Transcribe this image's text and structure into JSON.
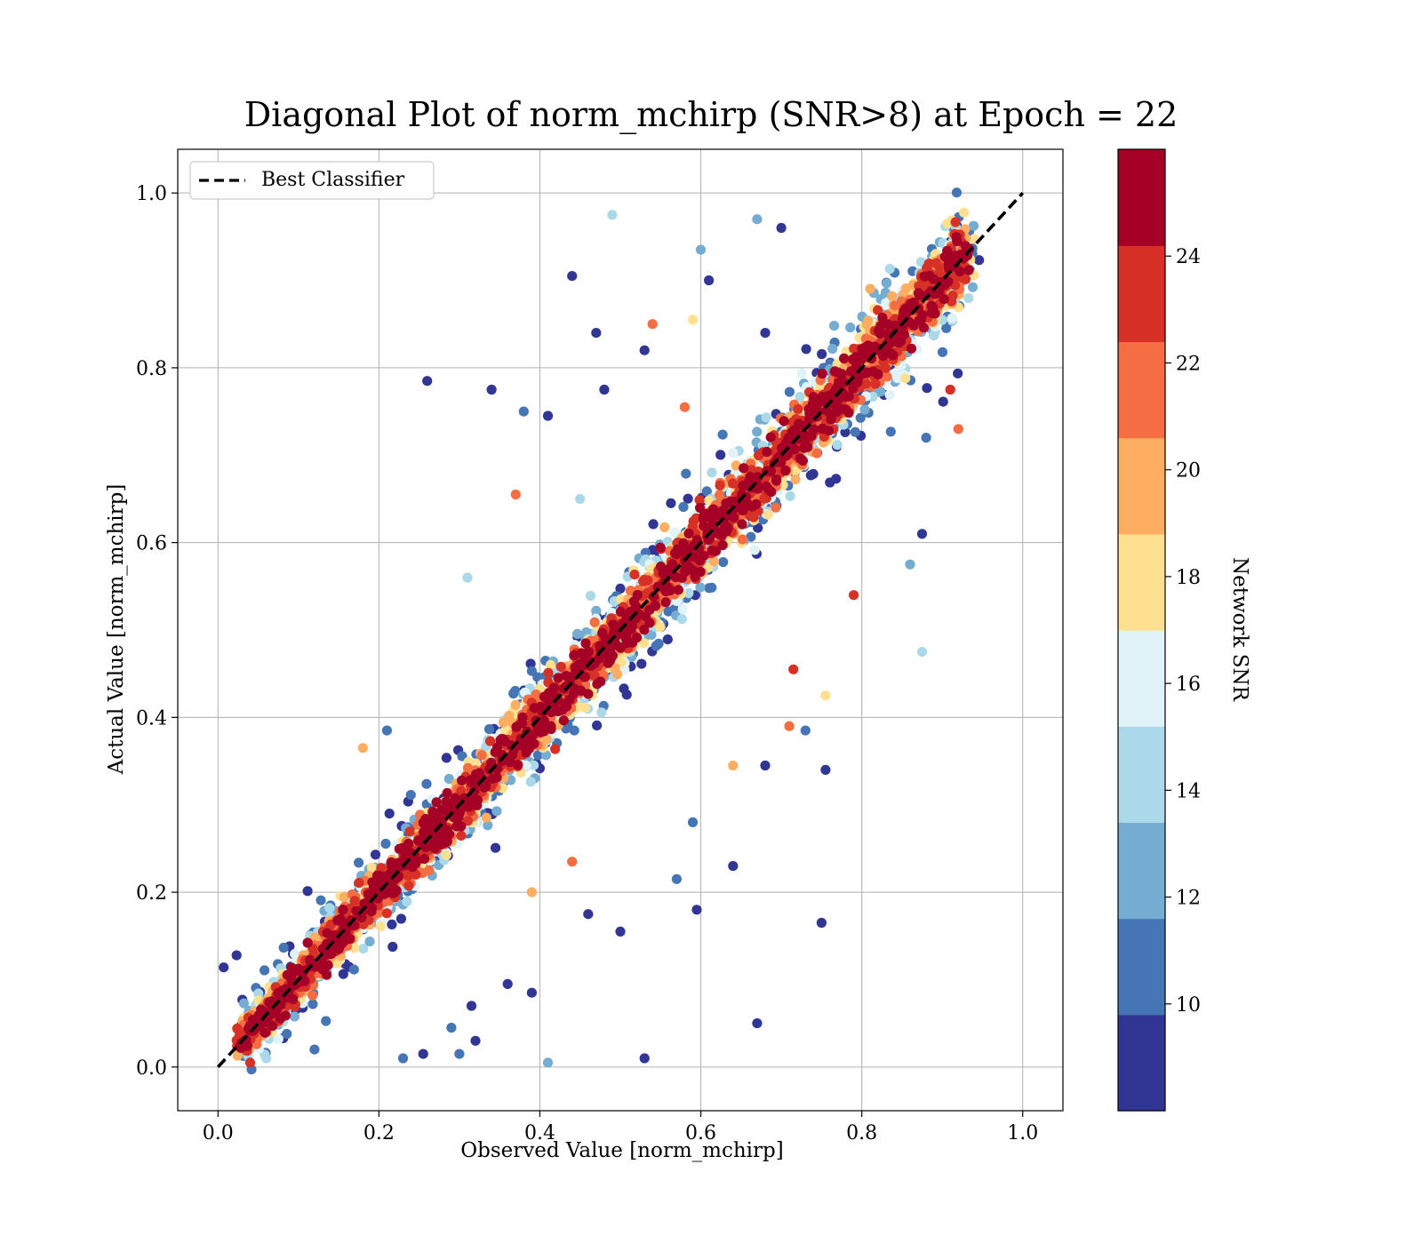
{
  "chart_data": {
    "type": "scatter",
    "title": "Diagonal Plot of norm_mchirp (SNR>8) at Epoch = 22",
    "xlabel": "Observed Value [norm_mchirp]",
    "ylabel": "Actual Value [norm_mchirp]",
    "xlim": [
      -0.05,
      1.05
    ],
    "ylim": [
      -0.05,
      1.05
    ],
    "xticks": [
      "0.0",
      "0.2",
      "0.4",
      "0.6",
      "0.8",
      "1.0"
    ],
    "yticks": [
      "0.0",
      "0.2",
      "0.4",
      "0.6",
      "0.8",
      "1.0"
    ],
    "grid": true,
    "legend": {
      "placement": "upper-left",
      "entries": [
        "Best Classifier"
      ]
    },
    "reference_line": {
      "name": "Best Classifier",
      "style": "dashed",
      "color": "#000000",
      "x": [
        0.0,
        1.0
      ],
      "y": [
        0.0,
        1.0
      ]
    },
    "colorbar": {
      "label": "Network SNR",
      "range": [
        8,
        26
      ],
      "ticks": [
        "10",
        "12",
        "14",
        "16",
        "18",
        "20",
        "22",
        "24"
      ],
      "colors": [
        "#313695",
        "#4575b4",
        "#74add1",
        "#abd9e9",
        "#e0f3f8",
        "#fee090",
        "#fdae61",
        "#f46d43",
        "#d73027",
        "#a50026"
      ]
    },
    "outliers": [
      {
        "x": 0.49,
        "y": 0.975,
        "snr": 14
      },
      {
        "x": 0.44,
        "y": 0.905,
        "snr": 9
      },
      {
        "x": 0.26,
        "y": 0.785,
        "snr": 9
      },
      {
        "x": 0.34,
        "y": 0.775,
        "snr": 9
      },
      {
        "x": 0.38,
        "y": 0.75,
        "snr": 11
      },
      {
        "x": 0.41,
        "y": 0.745,
        "snr": 9
      },
      {
        "x": 0.47,
        "y": 0.84,
        "snr": 9
      },
      {
        "x": 0.48,
        "y": 0.775,
        "snr": 9
      },
      {
        "x": 0.37,
        "y": 0.655,
        "snr": 22
      },
      {
        "x": 0.31,
        "y": 0.56,
        "snr": 14
      },
      {
        "x": 0.18,
        "y": 0.365,
        "snr": 19
      },
      {
        "x": 0.21,
        "y": 0.385,
        "snr": 11
      },
      {
        "x": 0.86,
        "y": 0.575,
        "snr": 12
      },
      {
        "x": 0.875,
        "y": 0.475,
        "snr": 14
      },
      {
        "x": 0.875,
        "y": 0.61,
        "snr": 9
      },
      {
        "x": 0.755,
        "y": 0.425,
        "snr": 18
      },
      {
        "x": 0.715,
        "y": 0.455,
        "snr": 24
      },
      {
        "x": 0.71,
        "y": 0.39,
        "snr": 21
      },
      {
        "x": 0.73,
        "y": 0.385,
        "snr": 11
      },
      {
        "x": 0.755,
        "y": 0.34,
        "snr": 9
      },
      {
        "x": 0.68,
        "y": 0.345,
        "snr": 9
      },
      {
        "x": 0.64,
        "y": 0.345,
        "snr": 19
      },
      {
        "x": 0.64,
        "y": 0.23,
        "snr": 9
      },
      {
        "x": 0.75,
        "y": 0.165,
        "snr": 9
      },
      {
        "x": 0.67,
        "y": 0.05,
        "snr": 9
      },
      {
        "x": 0.53,
        "y": 0.01,
        "snr": 9
      },
      {
        "x": 0.41,
        "y": 0.005,
        "snr": 12
      },
      {
        "x": 0.595,
        "y": 0.18,
        "snr": 9
      },
      {
        "x": 0.5,
        "y": 0.155,
        "snr": 9
      },
      {
        "x": 0.46,
        "y": 0.175,
        "snr": 9
      },
      {
        "x": 0.39,
        "y": 0.2,
        "snr": 19
      },
      {
        "x": 0.44,
        "y": 0.235,
        "snr": 22
      },
      {
        "x": 0.57,
        "y": 0.215,
        "snr": 11
      },
      {
        "x": 0.59,
        "y": 0.28,
        "snr": 11
      },
      {
        "x": 0.39,
        "y": 0.085,
        "snr": 9
      },
      {
        "x": 0.36,
        "y": 0.095,
        "snr": 9
      },
      {
        "x": 0.315,
        "y": 0.07,
        "snr": 9
      },
      {
        "x": 0.29,
        "y": 0.045,
        "snr": 11
      },
      {
        "x": 0.255,
        "y": 0.015,
        "snr": 9
      },
      {
        "x": 0.23,
        "y": 0.01,
        "snr": 11
      },
      {
        "x": 0.3,
        "y": 0.015,
        "snr": 11
      },
      {
        "x": 0.32,
        "y": 0.03,
        "snr": 9
      },
      {
        "x": 0.88,
        "y": 0.72,
        "snr": 11
      },
      {
        "x": 0.92,
        "y": 0.73,
        "snr": 21
      },
      {
        "x": 0.91,
        "y": 0.775,
        "snr": 24
      },
      {
        "x": 0.6,
        "y": 0.935,
        "snr": 12
      },
      {
        "x": 0.67,
        "y": 0.97,
        "snr": 12
      },
      {
        "x": 0.7,
        "y": 0.96,
        "snr": 9
      },
      {
        "x": 0.61,
        "y": 0.9,
        "snr": 9
      },
      {
        "x": 0.59,
        "y": 0.855,
        "snr": 18
      },
      {
        "x": 0.54,
        "y": 0.85,
        "snr": 21
      },
      {
        "x": 0.53,
        "y": 0.82,
        "snr": 9
      },
      {
        "x": 0.79,
        "y": 0.54,
        "snr": 24
      },
      {
        "x": 0.68,
        "y": 0.84,
        "snr": 9
      },
      {
        "x": 0.58,
        "y": 0.755,
        "snr": 22
      },
      {
        "x": 0.45,
        "y": 0.65,
        "snr": 14
      },
      {
        "x": 0.12,
        "y": 0.02,
        "snr": 11
      },
      {
        "x": 0.06,
        "y": 0.01,
        "snr": 14
      },
      {
        "x": 0.04,
        "y": 0.005,
        "snr": 24
      }
    ]
  }
}
